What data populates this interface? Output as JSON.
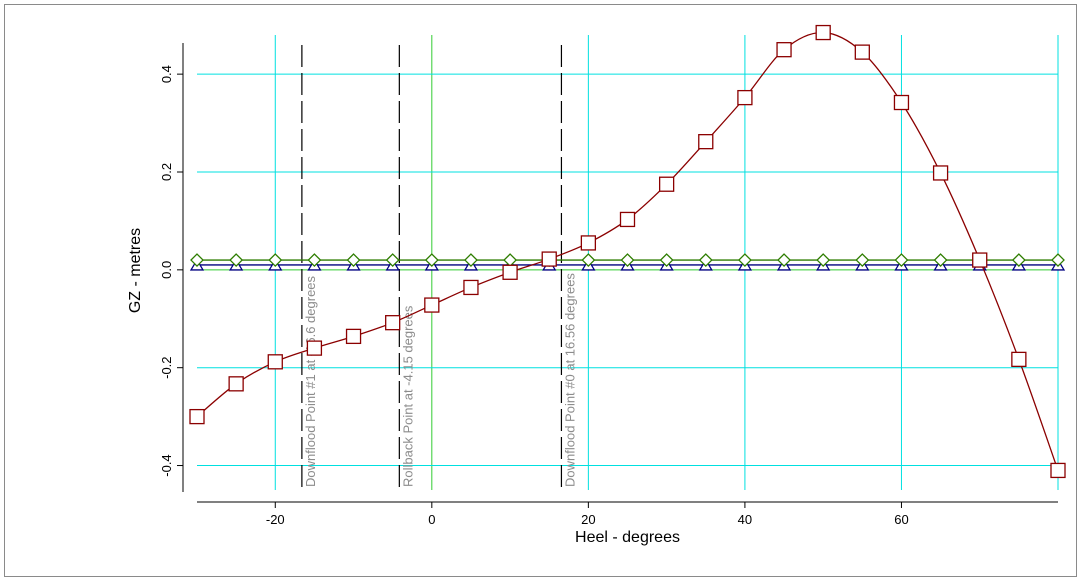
{
  "chart_data": {
    "type": "line",
    "xlabel": "Heel - degrees",
    "ylabel": "GZ - metres",
    "xlim": [
      -30,
      80
    ],
    "ylim": [
      -0.45,
      0.48
    ],
    "x_ticks": [
      -20,
      0,
      20,
      40,
      60
    ],
    "x_tick_labels": [
      "-20",
      "0",
      "20",
      "40",
      "60"
    ],
    "y_ticks": [
      -0.4,
      -0.2,
      0.0,
      0.2,
      0.4
    ],
    "y_tick_labels": [
      "-0.4",
      "-0.2",
      "0.0",
      "0.2",
      "0.4"
    ],
    "x_grid": [
      -20,
      0,
      20,
      40,
      60,
      80
    ],
    "y_grid": [
      -0.4,
      -0.2,
      0.0,
      0.2,
      0.4
    ],
    "grid": true,
    "colors": {
      "grid": "#00e0e0",
      "zero_lines": "#33cc33",
      "gz_curve": "#8b0000",
      "diamond_series": "#2e7d00",
      "triangle_series": "#000080",
      "reference_lines": "#000000",
      "reference_labels": "#8c8c8c"
    },
    "series": [
      {
        "marker": "square",
        "x": [
          -30,
          -25,
          -20,
          -15,
          -10,
          -5,
          0,
          5,
          10,
          15,
          20,
          25,
          30,
          35,
          40,
          45,
          50,
          55,
          60,
          65,
          70,
          75,
          80
        ],
        "y": [
          -0.3,
          -0.233,
          -0.188,
          -0.16,
          -0.136,
          -0.108,
          -0.072,
          -0.036,
          -0.005,
          0.022,
          0.055,
          0.103,
          0.175,
          0.262,
          0.352,
          0.45,
          0.485,
          0.445,
          0.342,
          0.198,
          0.02,
          -0.183,
          -0.41
        ]
      },
      {
        "marker": "diamond",
        "x": [
          -30,
          -25,
          -20,
          -15,
          -10,
          -5,
          0,
          5,
          10,
          15,
          20,
          25,
          30,
          35,
          40,
          45,
          50,
          55,
          60,
          65,
          70,
          75,
          80
        ],
        "y": [
          0.02,
          0.02,
          0.02,
          0.02,
          0.02,
          0.02,
          0.02,
          0.02,
          0.02,
          0.02,
          0.02,
          0.02,
          0.02,
          0.02,
          0.02,
          0.02,
          0.02,
          0.02,
          0.02,
          0.02,
          0.02,
          0.02,
          0.02
        ]
      },
      {
        "marker": "triangle",
        "x": [
          -30,
          -25,
          -20,
          -15,
          -10,
          -5,
          0,
          5,
          10,
          15,
          20,
          25,
          30,
          35,
          40,
          45,
          50,
          55,
          60,
          65,
          70,
          75,
          80
        ],
        "y": [
          0.01,
          0.01,
          0.01,
          0.01,
          0.01,
          0.01,
          0.01,
          0.01,
          0.01,
          0.01,
          0.01,
          0.01,
          0.01,
          0.01,
          0.01,
          0.01,
          0.01,
          0.01,
          0.01,
          0.01,
          0.01,
          0.01,
          0.01
        ]
      }
    ],
    "reference_lines": [
      {
        "x": -16.6,
        "label": "Downflood Point #1 at -16.6 degrees"
      },
      {
        "x": -4.15,
        "label": "Rollback Point at -4.15 degrees"
      },
      {
        "x": 16.56,
        "label": "Downflood Point #0 at 16.56 degrees"
      }
    ]
  }
}
